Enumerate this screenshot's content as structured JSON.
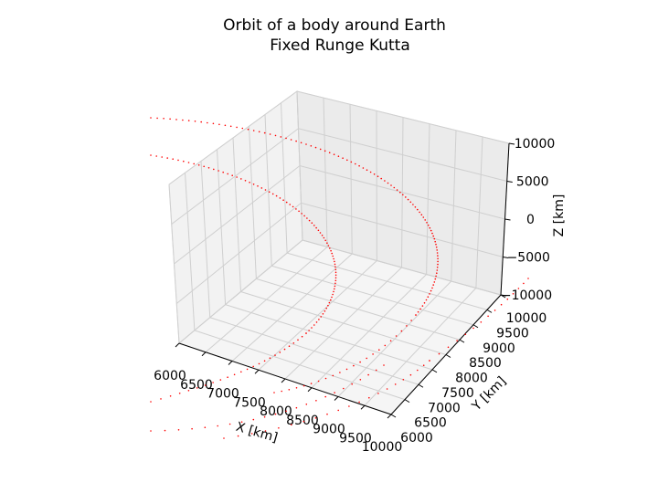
{
  "chart_data": {
    "type": "scatter",
    "title_line1": "Orbit of a body around Earth",
    "title_line2": "Fixed Runge Kutta",
    "xlabel": "X [km]",
    "ylabel": "Y [km]",
    "zlabel": "Z [km]",
    "xlim": [
      6000,
      10000
    ],
    "ylim": [
      6000,
      10000
    ],
    "zlim": [
      -10000,
      10000
    ],
    "xticks": [
      "6000",
      "6500",
      "7000",
      "7500",
      "8000",
      "8500",
      "9000",
      "9500",
      "10000"
    ],
    "yticks": [
      "6000",
      "6500",
      "7000",
      "7500",
      "8000",
      "8500",
      "9000",
      "9500",
      "10000"
    ],
    "zticks": [
      "−10000",
      "−5000",
      "0",
      "5000",
      "10000"
    ],
    "grid": true,
    "marker_color": "#ff0000",
    "series": [
      {
        "marker": "dot",
        "note_visible": "orbit trajectory points, partially clipped beyond axes"
      }
    ]
  }
}
